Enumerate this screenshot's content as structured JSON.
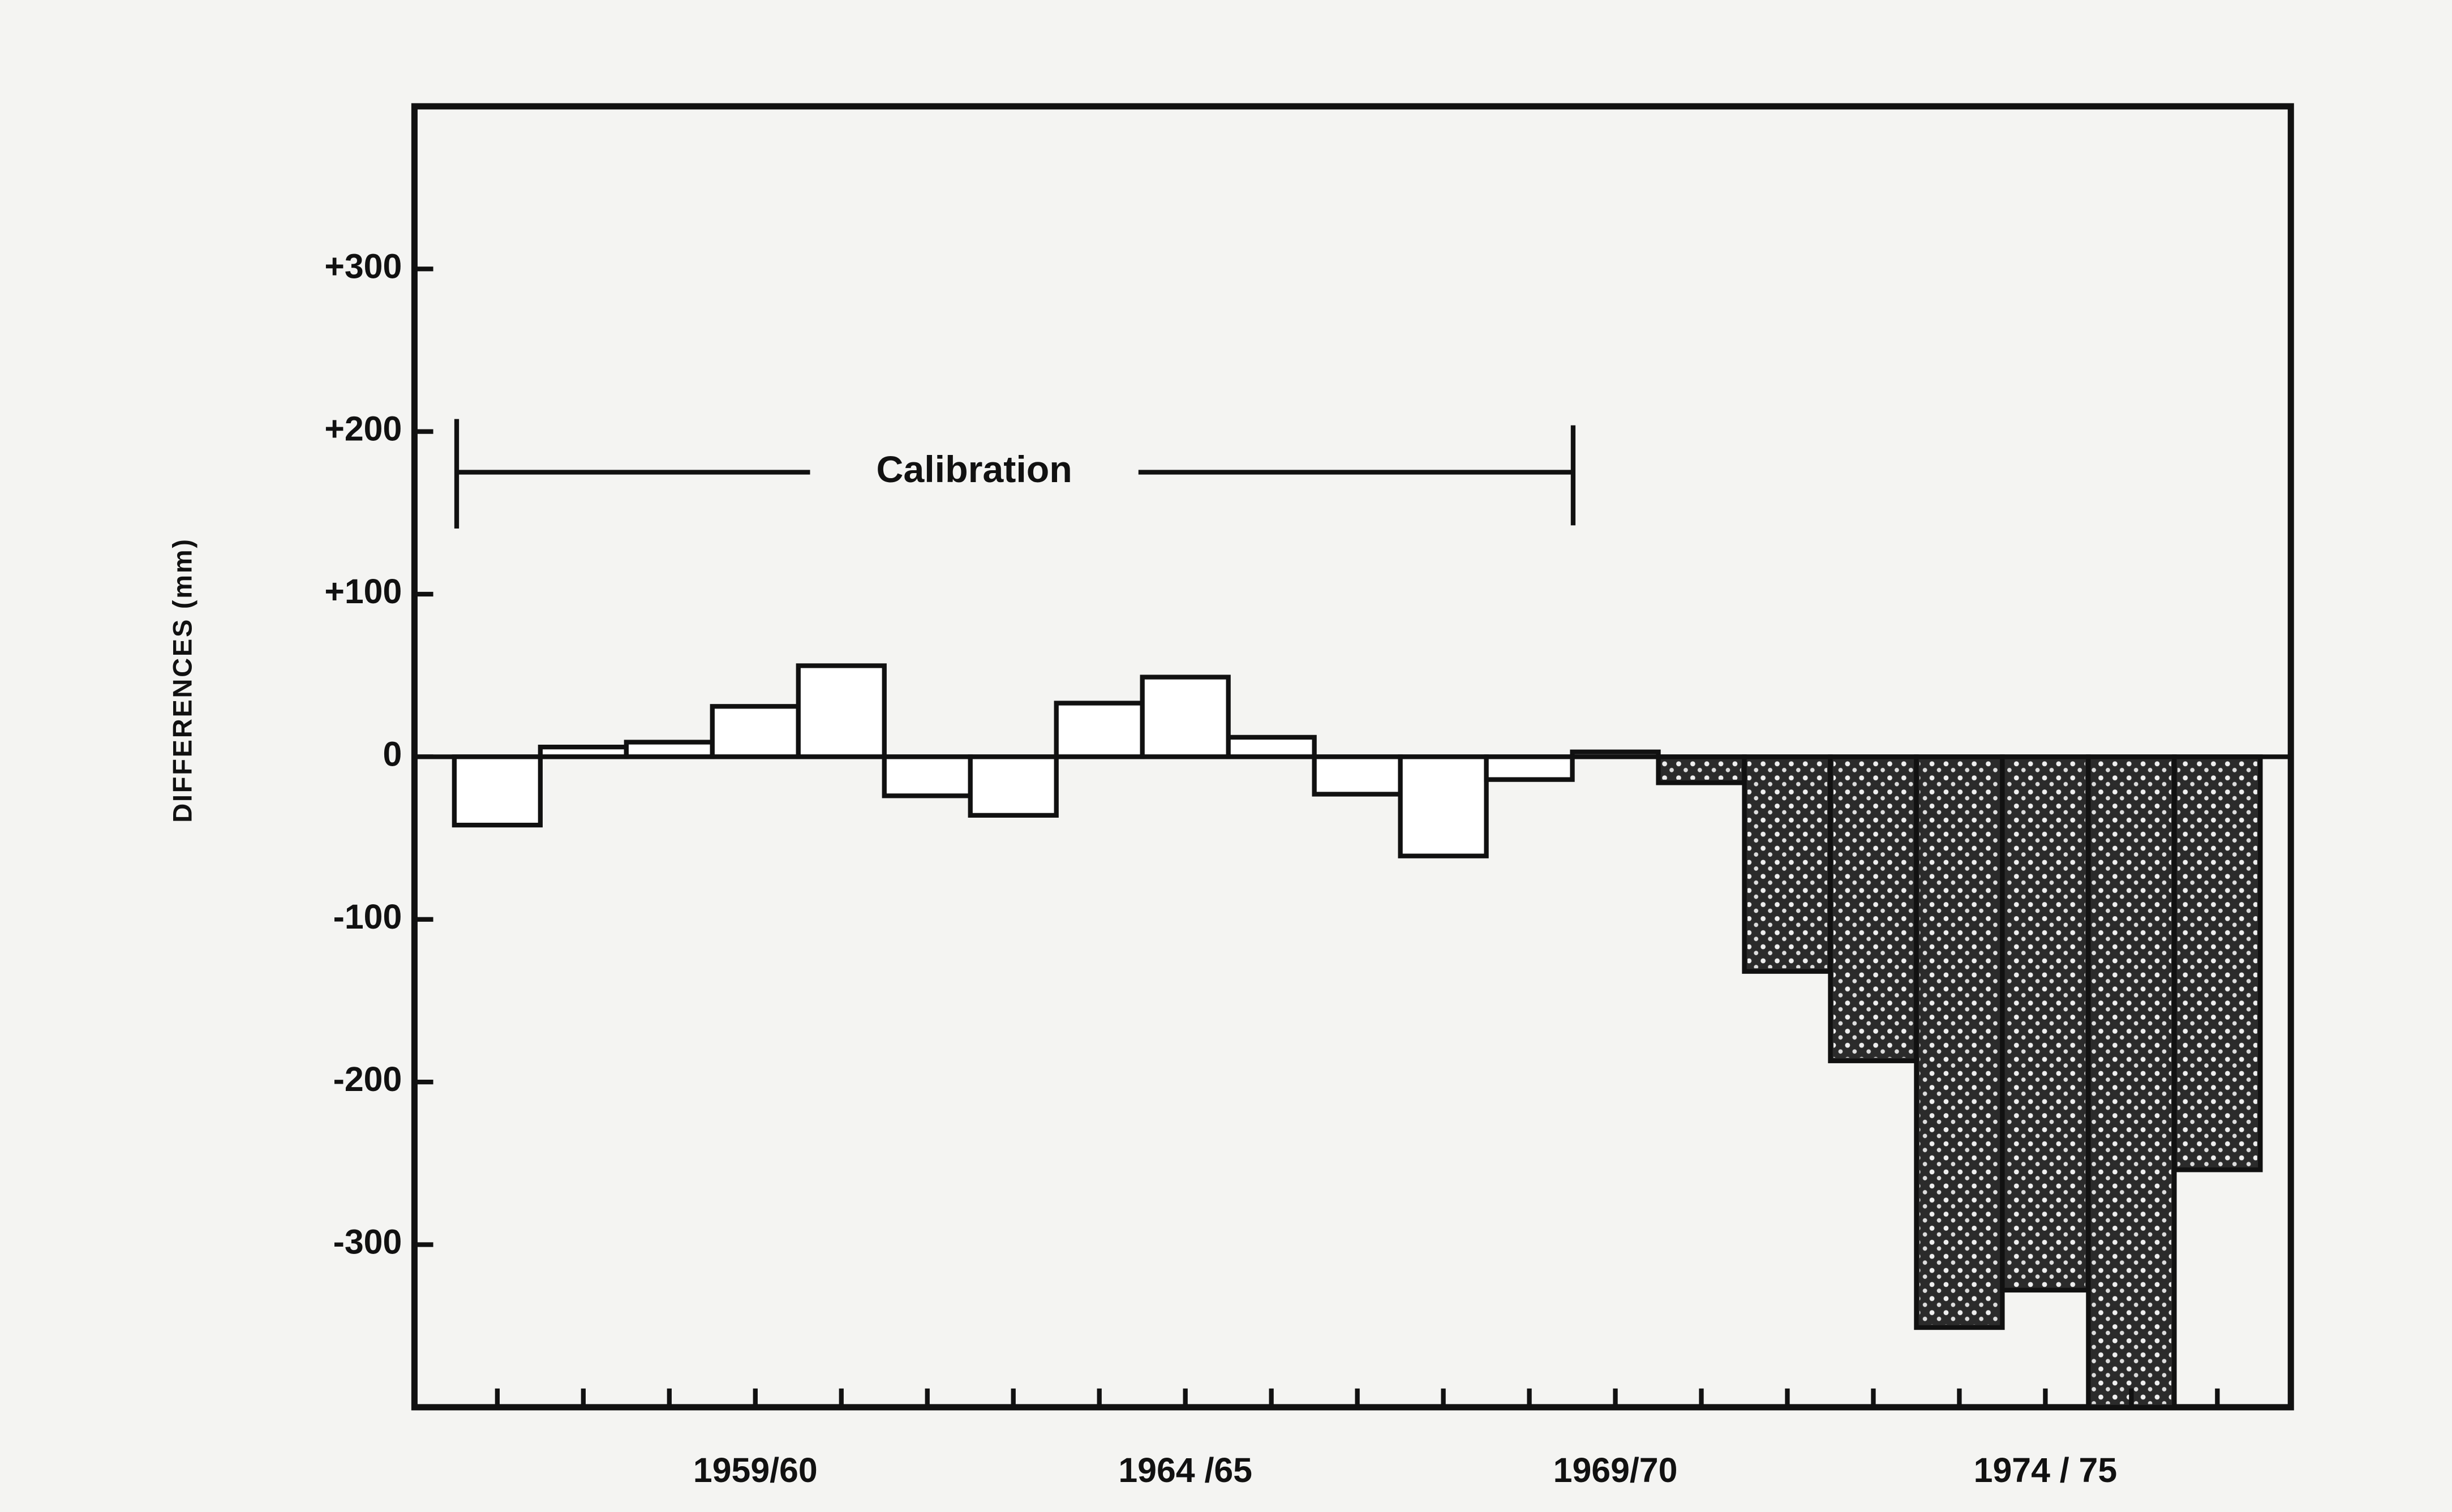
{
  "chart_data": {
    "type": "bar",
    "ylabel": "DIFFERENCES (mm)",
    "annotation": "Calibration",
    "categories": [
      null,
      null,
      null,
      "1959/60",
      null,
      null,
      null,
      null,
      "1964 /65",
      null,
      null,
      null,
      null,
      "1969/70",
      null,
      null,
      null,
      null,
      "1974 / 75",
      null,
      null
    ],
    "values": [
      -42,
      6,
      9,
      31,
      56,
      -24,
      -36,
      33,
      49,
      12,
      -23,
      -61,
      -14,
      3,
      -16,
      -132,
      -187,
      -351,
      -328,
      -400,
      -254
    ],
    "colors": [
      "#ffffff",
      "#ffffff",
      "#ffffff",
      "#ffffff",
      "#ffffff",
      "#ffffff",
      "#ffffff",
      "#ffffff",
      "#ffffff",
      "#ffffff",
      "#ffffff",
      "#ffffff",
      "#ffffff",
      "#ffffff",
      "#2b2b2b",
      "#2b2b2b",
      "#2b2b2b",
      "#2b2b2b",
      "#2b2b2b",
      "#2b2b2b",
      "#2b2b2b"
    ],
    "ylim": [
      -400,
      400
    ],
    "yticks": [
      {
        "value": 300,
        "label": "+300"
      },
      {
        "value": 200,
        "label": "+200"
      },
      {
        "value": 100,
        "label": "+100"
      },
      0,
      -100,
      -200,
      -300
    ]
  }
}
